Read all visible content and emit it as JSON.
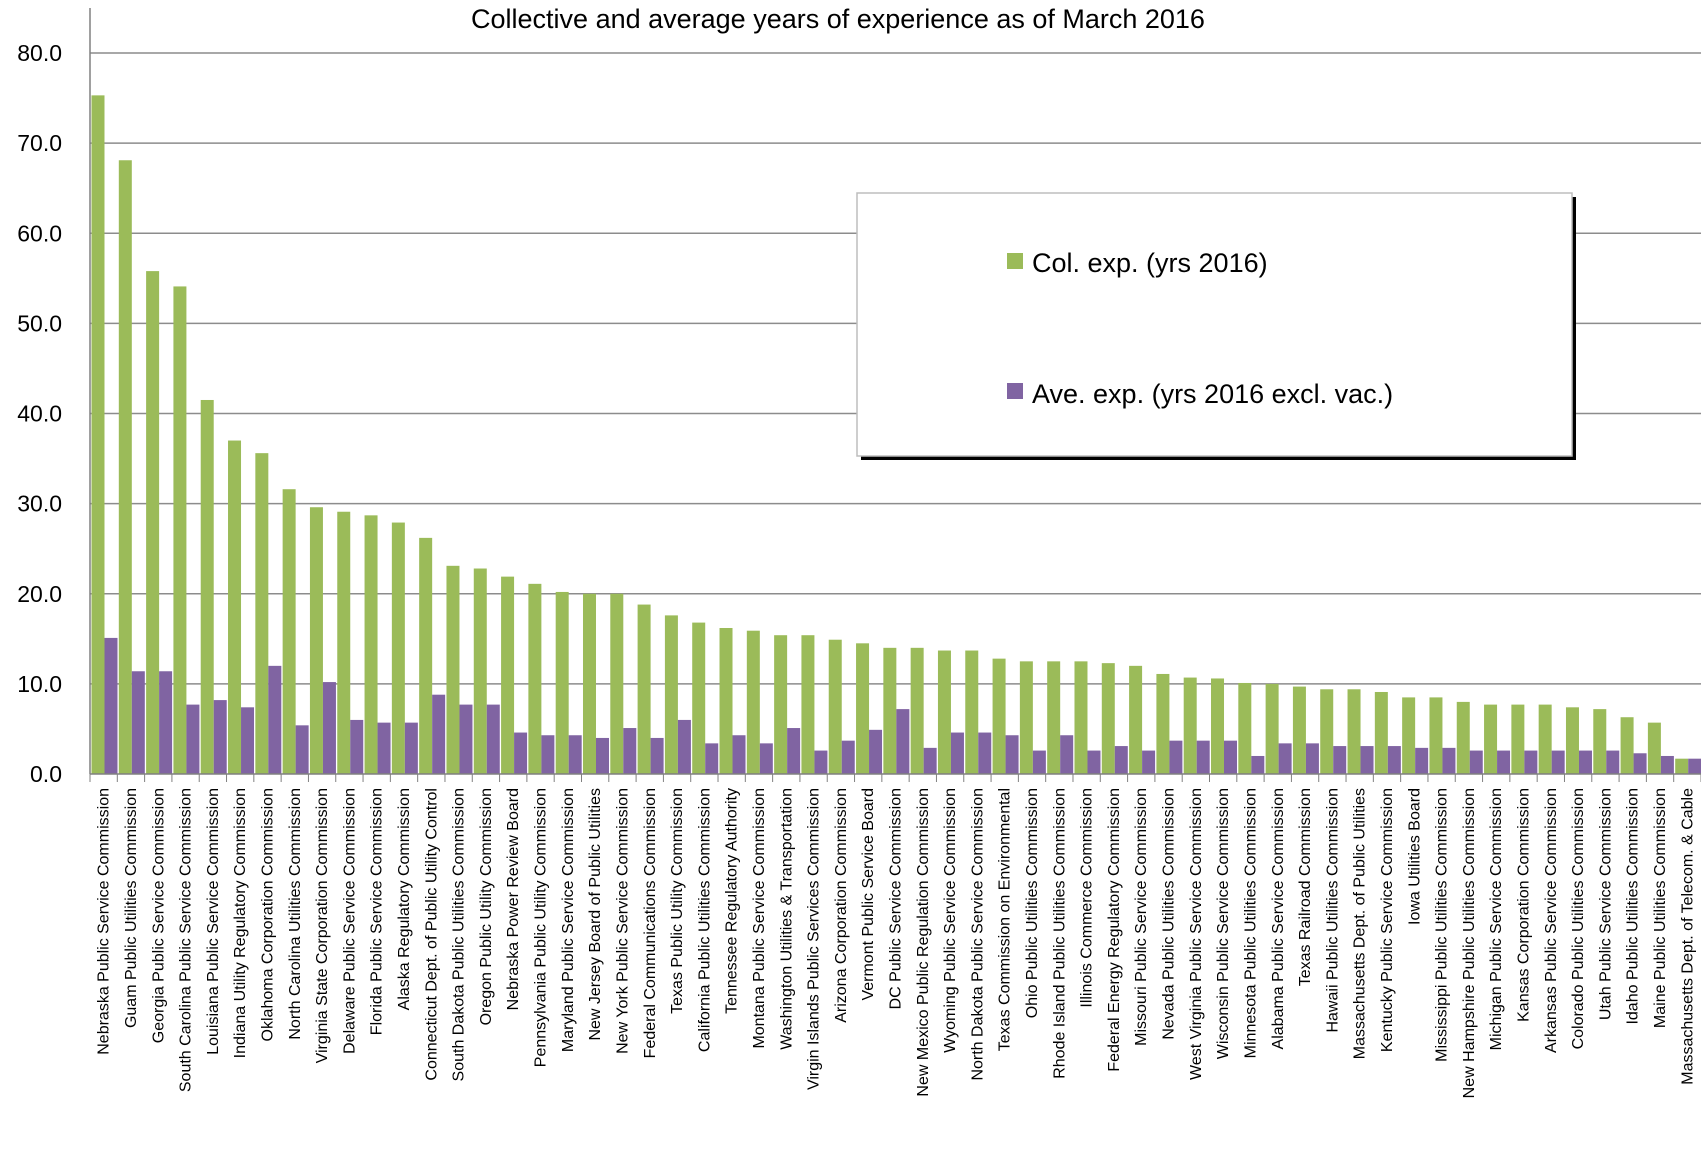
{
  "chart_data": {
    "type": "bar",
    "title": "Collective and average years of experience as of March 2016",
    "xlabel": "",
    "ylabel": "",
    "ylim": [
      0,
      80
    ],
    "yticks": [
      "0.0",
      "10.0",
      "20.0",
      "30.0",
      "40.0",
      "50.0",
      "60.0",
      "70.0",
      "80.0"
    ],
    "grid": true,
    "legend_position": "upper-right",
    "categories": [
      "Nebraska Public Service Commission",
      "Guam Public Utilities Commission",
      "Georgia Public Service Commission",
      "South Carolina Public Service Commission",
      "Louisiana Public Service Commission",
      "Indiana Utility Regulatory Commission",
      "Oklahoma Corporation Commission",
      "North Carolina Utilities Commission",
      "Virginia State Corporation Commission",
      "Delaware Public Service Commission",
      "Florida Public Service Commission",
      "Alaska Regulatory Commission",
      "Connecticut Dept. of Public Utility Control",
      "South Dakota Public Utilities Commission",
      "Oregon Public Utility Commission",
      "Nebraska Power Review Board",
      "Pennsylvania Public Utility Commission",
      "Maryland Public Service Commission",
      "New Jersey Board of Public Utilities",
      "New York Public Service Commission",
      "Federal Communications Commission",
      "Texas Public Utility Commission",
      "California Public Utilities Commission",
      "Tennessee Regulatory Authority",
      "Montana Public Service Commission",
      "Washington Utilities & Transportation",
      "Virgin Islands Public Services Commission",
      "Arizona Corporation Commission",
      "Vermont Public Service Board",
      "DC Public Service Commission",
      "New Mexico Public Regulation Commission",
      "Wyoming Public Service Commission",
      "North Dakota Public Service Commission",
      "Texas Commission on Environmental",
      "Ohio Public Utilities Commission",
      "Rhode Island Public Utilities Commission",
      "Illinois Commerce Commission",
      "Federal Energy Regulatory Commission",
      "Missouri Public Service Commission",
      "Nevada Public Utilities Commission",
      "West Virginia Public Service Commission",
      "Wisconsin Public Service Commission",
      "Minnesota Public Utilities Commission",
      "Alabama Public Service Commission",
      "Texas Railroad Commission",
      "Hawaii Public Utilities Commission",
      "Massachusetts Dept. of Public Utilities",
      "Kentucky Public Service Commission",
      "Iowa Utilities Board",
      "Mississippi Public Utilities Commission",
      "New Hampshire Public Utilities Commission",
      "Michigan Public Service Commission",
      "Kansas Corporation Commission",
      "Arkansas Public Service Commission",
      "Colorado Public Utilities Commission",
      "Utah Public Service Commission",
      "Idaho Public Utilities Commission",
      "Maine Public Utilities Commission",
      "Massachusetts Dept. of Telecom. & Cable"
    ],
    "series": [
      {
        "name": "Col. exp. (yrs 2016)",
        "color": "#9bbb59",
        "values": [
          75.3,
          68.1,
          55.8,
          54.1,
          41.5,
          37.0,
          35.6,
          31.6,
          29.6,
          29.1,
          28.7,
          27.9,
          26.2,
          23.1,
          22.8,
          21.9,
          21.1,
          20.2,
          20.0,
          20.0,
          18.8,
          17.6,
          16.8,
          16.2,
          15.9,
          15.4,
          15.4,
          14.9,
          14.5,
          14.0,
          14.0,
          13.7,
          13.7,
          12.8,
          12.5,
          12.5,
          12.5,
          12.3,
          12.0,
          11.1,
          10.7,
          10.6,
          10.1,
          10.0,
          9.7,
          9.4,
          9.4,
          9.1,
          8.5,
          8.5,
          8.0,
          7.7,
          7.7,
          7.7,
          7.4,
          7.2,
          6.3,
          5.7,
          1.7
        ]
      },
      {
        "name": "Ave. exp. (yrs 2016 excl. vac.)",
        "color": "#8064a2",
        "values": [
          15.1,
          11.4,
          11.4,
          7.7,
          8.2,
          7.4,
          12.0,
          5.4,
          10.2,
          6.0,
          5.7,
          5.7,
          8.8,
          7.7,
          7.7,
          4.6,
          4.3,
          4.3,
          4.0,
          5.1,
          4.0,
          6.0,
          3.4,
          4.3,
          3.4,
          5.1,
          2.6,
          3.7,
          4.9,
          7.2,
          2.9,
          4.6,
          4.6,
          4.3,
          2.6,
          4.3,
          2.6,
          3.1,
          2.6,
          3.7,
          3.7,
          3.7,
          2.0,
          3.4,
          3.4,
          3.1,
          3.1,
          3.1,
          2.9,
          2.9,
          2.6,
          2.6,
          2.6,
          2.6,
          2.6,
          2.6,
          2.3,
          2.0,
          1.7
        ]
      }
    ]
  }
}
